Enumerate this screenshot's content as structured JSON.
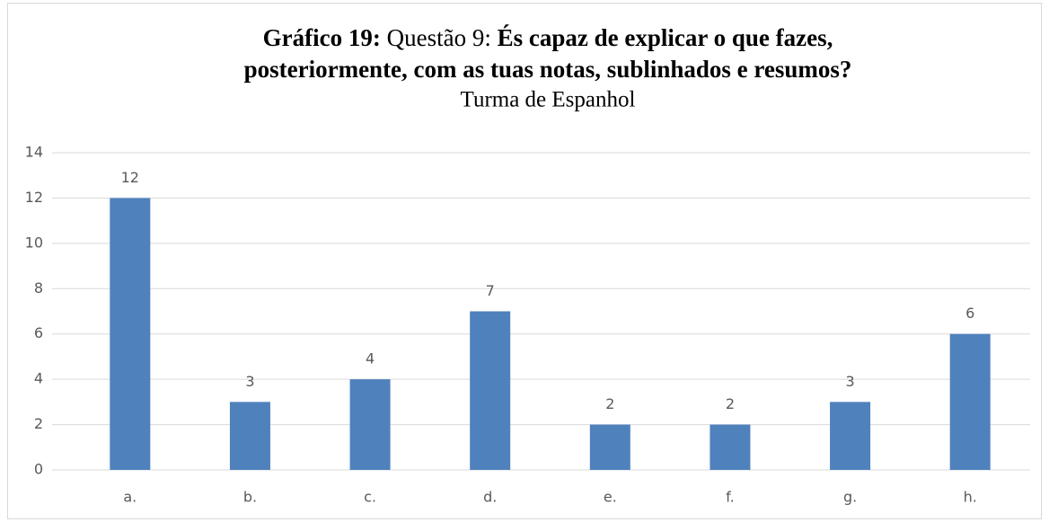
{
  "chart_data": {
    "type": "bar",
    "title": [
      "Gráfico 19:",
      "Questão 9:",
      "És capaz de explicar o que fazes,",
      "posteriormente, com as tuas notas, sublinhados e resumos?"
    ],
    "subtitle": "Turma de Espanhol",
    "categories": [
      "a.",
      "b.",
      "c.",
      "d.",
      "e.",
      "f.",
      "g.",
      "h."
    ],
    "values": [
      12,
      3,
      4,
      7,
      2,
      2,
      3,
      6
    ],
    "color": "#4f81bd",
    "ylim": [
      0,
      14
    ],
    "yticks": [
      0,
      2,
      4,
      6,
      8,
      10,
      12,
      14
    ],
    "grid": true
  }
}
